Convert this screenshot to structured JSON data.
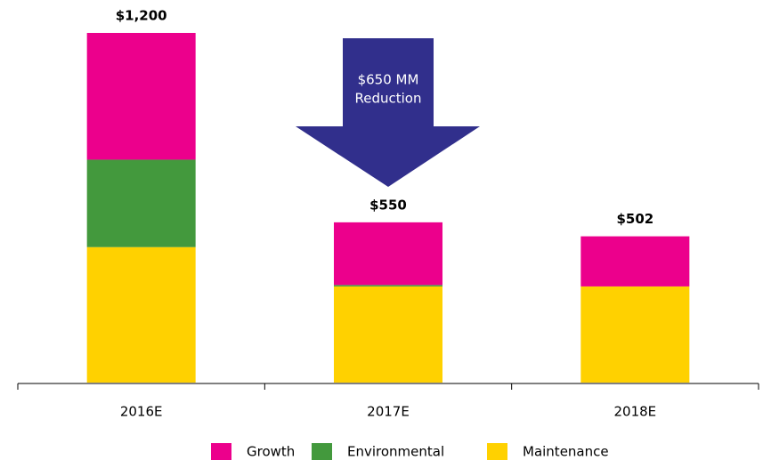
{
  "chart_data": {
    "type": "bar",
    "stacked": true,
    "categories": [
      "2016E",
      "2017E",
      "2018E"
    ],
    "series": [
      {
        "name": "Growth",
        "color": "#ec008c",
        "values": [
          435,
          215,
          172
        ]
      },
      {
        "name": "Environmental",
        "color": "#43993d",
        "values": [
          300,
          5,
          0
        ]
      },
      {
        "name": "Maintenance",
        "color": "#ffd100",
        "values": [
          465,
          330,
          330
        ]
      }
    ],
    "total_labels": [
      "$1,200",
      "$550",
      "$502"
    ],
    "annotation": {
      "lines": [
        "$650 MM",
        "Reduction"
      ],
      "color": "#312f8c"
    },
    "ylim": [
      0,
      1200
    ],
    "legend": "bottom"
  }
}
